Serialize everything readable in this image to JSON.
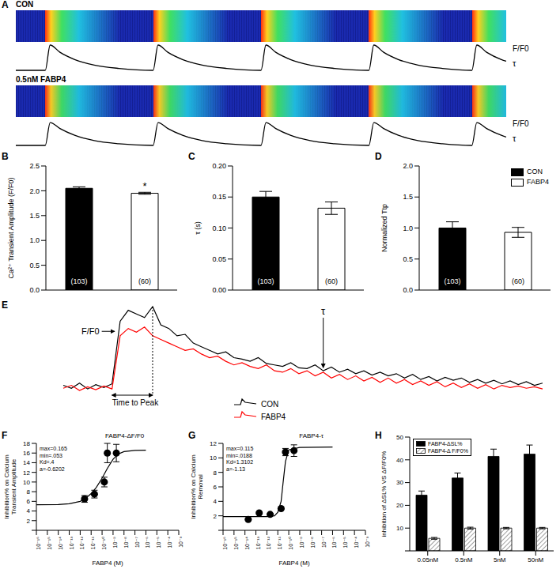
{
  "chart_data": [
    {
      "panel": "A",
      "type": "line",
      "tick_labels": false,
      "annotations": [
        "F/F0",
        "τ"
      ],
      "x": [
        0,
        6,
        7,
        9,
        12,
        16,
        21,
        28,
        29,
        31,
        34,
        38,
        43,
        50,
        51,
        53,
        56,
        60,
        65,
        72,
        73,
        75,
        78,
        82,
        87,
        93,
        94,
        96,
        99,
        100
      ],
      "series": [
        {
          "name": "CON",
          "color": "#000000",
          "values": [
            1.0,
            1.0,
            2.05,
            1.75,
            1.45,
            1.22,
            1.08,
            1.0,
            2.05,
            1.75,
            1.45,
            1.22,
            1.08,
            1.0,
            2.05,
            1.75,
            1.45,
            1.22,
            1.08,
            1.0,
            2.05,
            1.75,
            1.45,
            1.22,
            1.08,
            1.0,
            2.05,
            1.75,
            1.45,
            1.38
          ]
        },
        {
          "name": "0.5nM FABP4",
          "color": "#000000",
          "values": [
            1.0,
            1.0,
            1.95,
            1.7,
            1.42,
            1.2,
            1.07,
            1.0,
            1.95,
            1.7,
            1.42,
            1.2,
            1.07,
            1.0,
            1.95,
            1.7,
            1.42,
            1.2,
            1.07,
            1.0,
            1.95,
            1.7,
            1.42,
            1.2,
            1.07,
            1.0,
            1.95,
            1.7,
            1.42,
            1.35
          ]
        }
      ]
    },
    {
      "type": "bar",
      "categories": [
        "CON",
        "FABP4"
      ],
      "colors": [
        "#000000",
        "#ffffff"
      ],
      "legend": "top right",
      "tick_labels": "y",
      "panels": [
        {
          "panel": "B",
          "y_label": "Ca²⁺ Transient Amplitude (F/F0)",
          "values": [
            2.05,
            1.95
          ],
          "errors": [
            0.03,
            0.02
          ],
          "n_labels": [
            "(103)",
            "(60)"
          ],
          "marks": [
            null,
            "*"
          ],
          "ylim": [
            0,
            2.5
          ],
          "yticks": [
            {
              "value": 0,
              "label": "0.0"
            },
            0.5,
            {
              "value": 1,
              "label": "1.0"
            },
            1.5,
            {
              "value": 2,
              "label": "2.0"
            },
            2.5
          ]
        },
        {
          "panel": "C",
          "y_label": "τ (s)",
          "values": [
            0.15,
            0.132
          ],
          "errors": [
            0.009,
            0.01
          ],
          "n_labels": [
            "(103)",
            "(60)"
          ],
          "marks": [
            null,
            null
          ],
          "ylim": [
            0,
            0.2
          ],
          "yticks": [
            {
              "value": 0,
              "label": "0.00"
            },
            0.05,
            {
              "value": 0.1,
              "label": "0.10"
            },
            0.15,
            {
              "value": 0.2,
              "label": "0.20"
            }
          ]
        },
        {
          "panel": "D",
          "y_label": "Normalized Ttp",
          "values": [
            1.0,
            0.93
          ],
          "errors": [
            0.1,
            0.08
          ],
          "n_labels": [
            "(103)",
            "(60)"
          ],
          "marks": [
            null,
            null
          ],
          "ylim": [
            0,
            2
          ],
          "yticks": [
            {
              "value": 0,
              "label": "0.0"
            },
            0.5,
            {
              "value": 1,
              "label": "1.0"
            },
            1.5,
            {
              "value": 2,
              "label": "2.0"
            }
          ]
        }
      ]
    },
    {
      "panel": "E",
      "type": "line",
      "tick_labels": false,
      "legend": "bottom",
      "annotations": [
        "F/F0",
        "τ",
        "Time to Peak"
      ],
      "series": [
        {
          "name": "CON",
          "color": "#000000",
          "values": [
            1.02,
            0.98,
            1.05,
            0.97,
            1.03,
            0.99,
            1.04,
            1.9,
            2.05,
            2.0,
            1.95,
            2.1,
            1.85,
            1.8,
            1.7,
            1.72,
            1.6,
            1.55,
            1.5,
            1.45,
            1.48,
            1.4,
            1.38,
            1.35,
            1.4,
            1.32,
            1.3,
            1.28,
            1.33,
            1.26,
            1.25,
            1.3,
            1.22,
            1.27,
            1.2,
            1.24,
            1.18,
            1.22,
            1.16,
            1.2,
            1.15,
            1.18,
            1.12,
            1.17,
            1.1,
            1.14,
            1.08,
            1.13,
            1.09,
            1.12,
            1.06,
            1.1,
            1.05,
            1.09,
            1.04,
            1.08,
            1.03,
            1.07,
            1.02,
            1.05
          ]
        },
        {
          "name": "FABP4",
          "color": "#ff0000",
          "values": [
            0.98,
            1.02,
            0.95,
            1.0,
            0.96,
            1.01,
            0.97,
            1.7,
            1.8,
            1.75,
            1.82,
            1.7,
            1.65,
            1.6,
            1.55,
            1.5,
            1.52,
            1.45,
            1.4,
            1.42,
            1.35,
            1.3,
            1.33,
            1.28,
            1.25,
            1.3,
            1.22,
            1.2,
            1.25,
            1.18,
            1.22,
            1.15,
            1.2,
            1.12,
            1.17,
            1.1,
            1.15,
            1.08,
            1.13,
            1.06,
            1.12,
            1.05,
            1.1,
            1.03,
            1.08,
            1.02,
            1.07,
            1.0,
            1.05,
            0.99,
            1.04,
            0.98,
            1.03,
            0.97,
            1.02,
            0.99,
            1.01,
            0.98,
            1.0,
            0.97
          ]
        }
      ]
    },
    {
      "panel": "F",
      "type": "scatter",
      "title": "FABP4-ΔF/F0",
      "annotations": [
        "max=0.165",
        "min=.053",
        "Kd=.4",
        "a=-0.6202"
      ],
      "x_label": "FABP4 (M)",
      "y_label": "Inhibition% on Calcium Transient Amplitude",
      "log": "x",
      "marker": "circle",
      "xlim": [
        1e-16,
        0.001
      ],
      "xticks": [
        {
          "value": 1e-16,
          "label": "10⁻¹⁶"
        },
        {
          "value": 1e-15,
          "label": "10⁻¹⁵"
        },
        {
          "value": 1e-14,
          "label": "10⁻¹⁴"
        },
        {
          "value": 1e-13,
          "label": "10⁻¹³"
        },
        {
          "value": 1e-12,
          "label": "10⁻¹²"
        },
        {
          "value": 1e-11,
          "label": "10⁻¹¹"
        },
        {
          "value": 1e-10,
          "label": "10⁻¹⁰"
        },
        {
          "value": 1e-09,
          "label": "10⁻⁹"
        },
        {
          "value": 1e-08,
          "label": "10⁻⁸"
        },
        {
          "value": 1e-07,
          "label": "10⁻⁷"
        },
        {
          "value": 1e-06,
          "label": "10⁻⁶"
        },
        {
          "value": 1e-05,
          "label": "10⁻⁵"
        },
        {
          "value": 0.0001,
          "label": "10⁻⁴"
        },
        {
          "value": 0.001,
          "label": "10⁻³"
        }
      ],
      "ylim": [
        0,
        18
      ],
      "yticks": [
        0,
        2,
        4,
        6,
        8,
        10,
        12,
        14,
        16,
        18
      ],
      "x": [
        2.5e-12,
        2e-11,
        1.6e-10,
        3e-10,
        2e-09
      ],
      "values": [
        6.5,
        7.5,
        10,
        16,
        16
      ],
      "errors": [
        0.7,
        0.8,
        1,
        2,
        1.8
      ],
      "fit": {
        "x": [
          1e-16,
          1e-14,
          1e-13,
          1e-12,
          3e-12,
          1e-11,
          3e-11,
          1e-10,
          3e-10,
          1e-09,
          3e-09,
          1e-08,
          1e-07,
          1e-06
        ],
        "values": [
          5.3,
          5.35,
          5.5,
          6.0,
          6.6,
          7.6,
          8.9,
          10.8,
          12.8,
          14.7,
          15.8,
          16.3,
          16.55,
          16.6
        ]
      }
    },
    {
      "panel": "G",
      "type": "scatter",
      "title": "FABP4-τ",
      "annotations": [
        "max=0.115",
        "min=.0188",
        "Kd=1.3102",
        "a=-1.13"
      ],
      "x_label": "FABP4 (M)",
      "y_label": "Inhibition% on Calcium Removal",
      "log": "x",
      "marker": "circle",
      "xlim": [
        1e-16,
        0.001
      ],
      "xticks": [
        {
          "value": 1e-16,
          "label": "10⁻¹⁶"
        },
        {
          "value": 1e-15,
          "label": "10⁻¹⁵"
        },
        {
          "value": 1e-14,
          "label": "10⁻¹⁴"
        },
        {
          "value": 1e-13,
          "label": "10⁻¹³"
        },
        {
          "value": 1e-12,
          "label": "10⁻¹²"
        },
        {
          "value": 1e-11,
          "label": "10⁻¹¹"
        },
        {
          "value": 1e-10,
          "label": "10⁻¹⁰"
        },
        {
          "value": 1e-09,
          "label": "10⁻⁹"
        },
        {
          "value": 1e-08,
          "label": "10⁻⁸"
        },
        {
          "value": 1e-07,
          "label": "10⁻⁷"
        },
        {
          "value": 1e-06,
          "label": "10⁻⁶"
        },
        {
          "value": 1e-05,
          "label": "10⁻⁵"
        },
        {
          "value": 0.0001,
          "label": "10⁻⁴"
        },
        {
          "value": 0.001,
          "label": "10⁻³"
        }
      ],
      "ylim": [
        0,
        12
      ],
      "yticks": [
        0,
        2,
        4,
        6,
        8,
        10,
        12
      ],
      "x": [
        2e-14,
        2e-13,
        2e-12,
        2e-11,
        5e-11,
        3e-10
      ],
      "values": [
        1.5,
        2.4,
        2.2,
        3.0,
        10.8,
        11
      ],
      "errors": [
        0.1,
        0.1,
        0.1,
        0.1,
        0.5,
        0.8
      ],
      "fit": {
        "x": [
          1e-16,
          1e-13,
          1e-12,
          5e-12,
          1e-11,
          2e-11,
          3e-11,
          5e-11,
          1e-10,
          1e-09,
          1e-06
        ],
        "values": [
          1.9,
          1.9,
          1.9,
          2.0,
          2.5,
          4,
          6.5,
          9.5,
          11.1,
          11.45,
          11.5
        ]
      }
    },
    {
      "panel": "H",
      "type": "bar",
      "categories": [
        "0.05nM",
        "0.5nM",
        "5nM",
        "50nM"
      ],
      "legend": "top left",
      "y_label": "inhibition of ΔSL% VS ΔF/F0%",
      "ylim": [
        0,
        50
      ],
      "yticks": [
        0,
        10,
        20,
        30,
        40,
        50
      ],
      "series": [
        {
          "name": "FABP4-ΔSL%",
          "color": "#000000",
          "values": [
            24.5,
            32,
            41.5,
            42.5
          ],
          "errors": [
            1.8,
            2.2,
            3.2,
            4
          ]
        },
        {
          "name": "FABP4-Δ F/F0%",
          "color": "#888888",
          "values": [
            5.5,
            10,
            10,
            10
          ],
          "errors": [
            0.4,
            0.4,
            0.3,
            0.3
          ]
        }
      ]
    }
  ]
}
